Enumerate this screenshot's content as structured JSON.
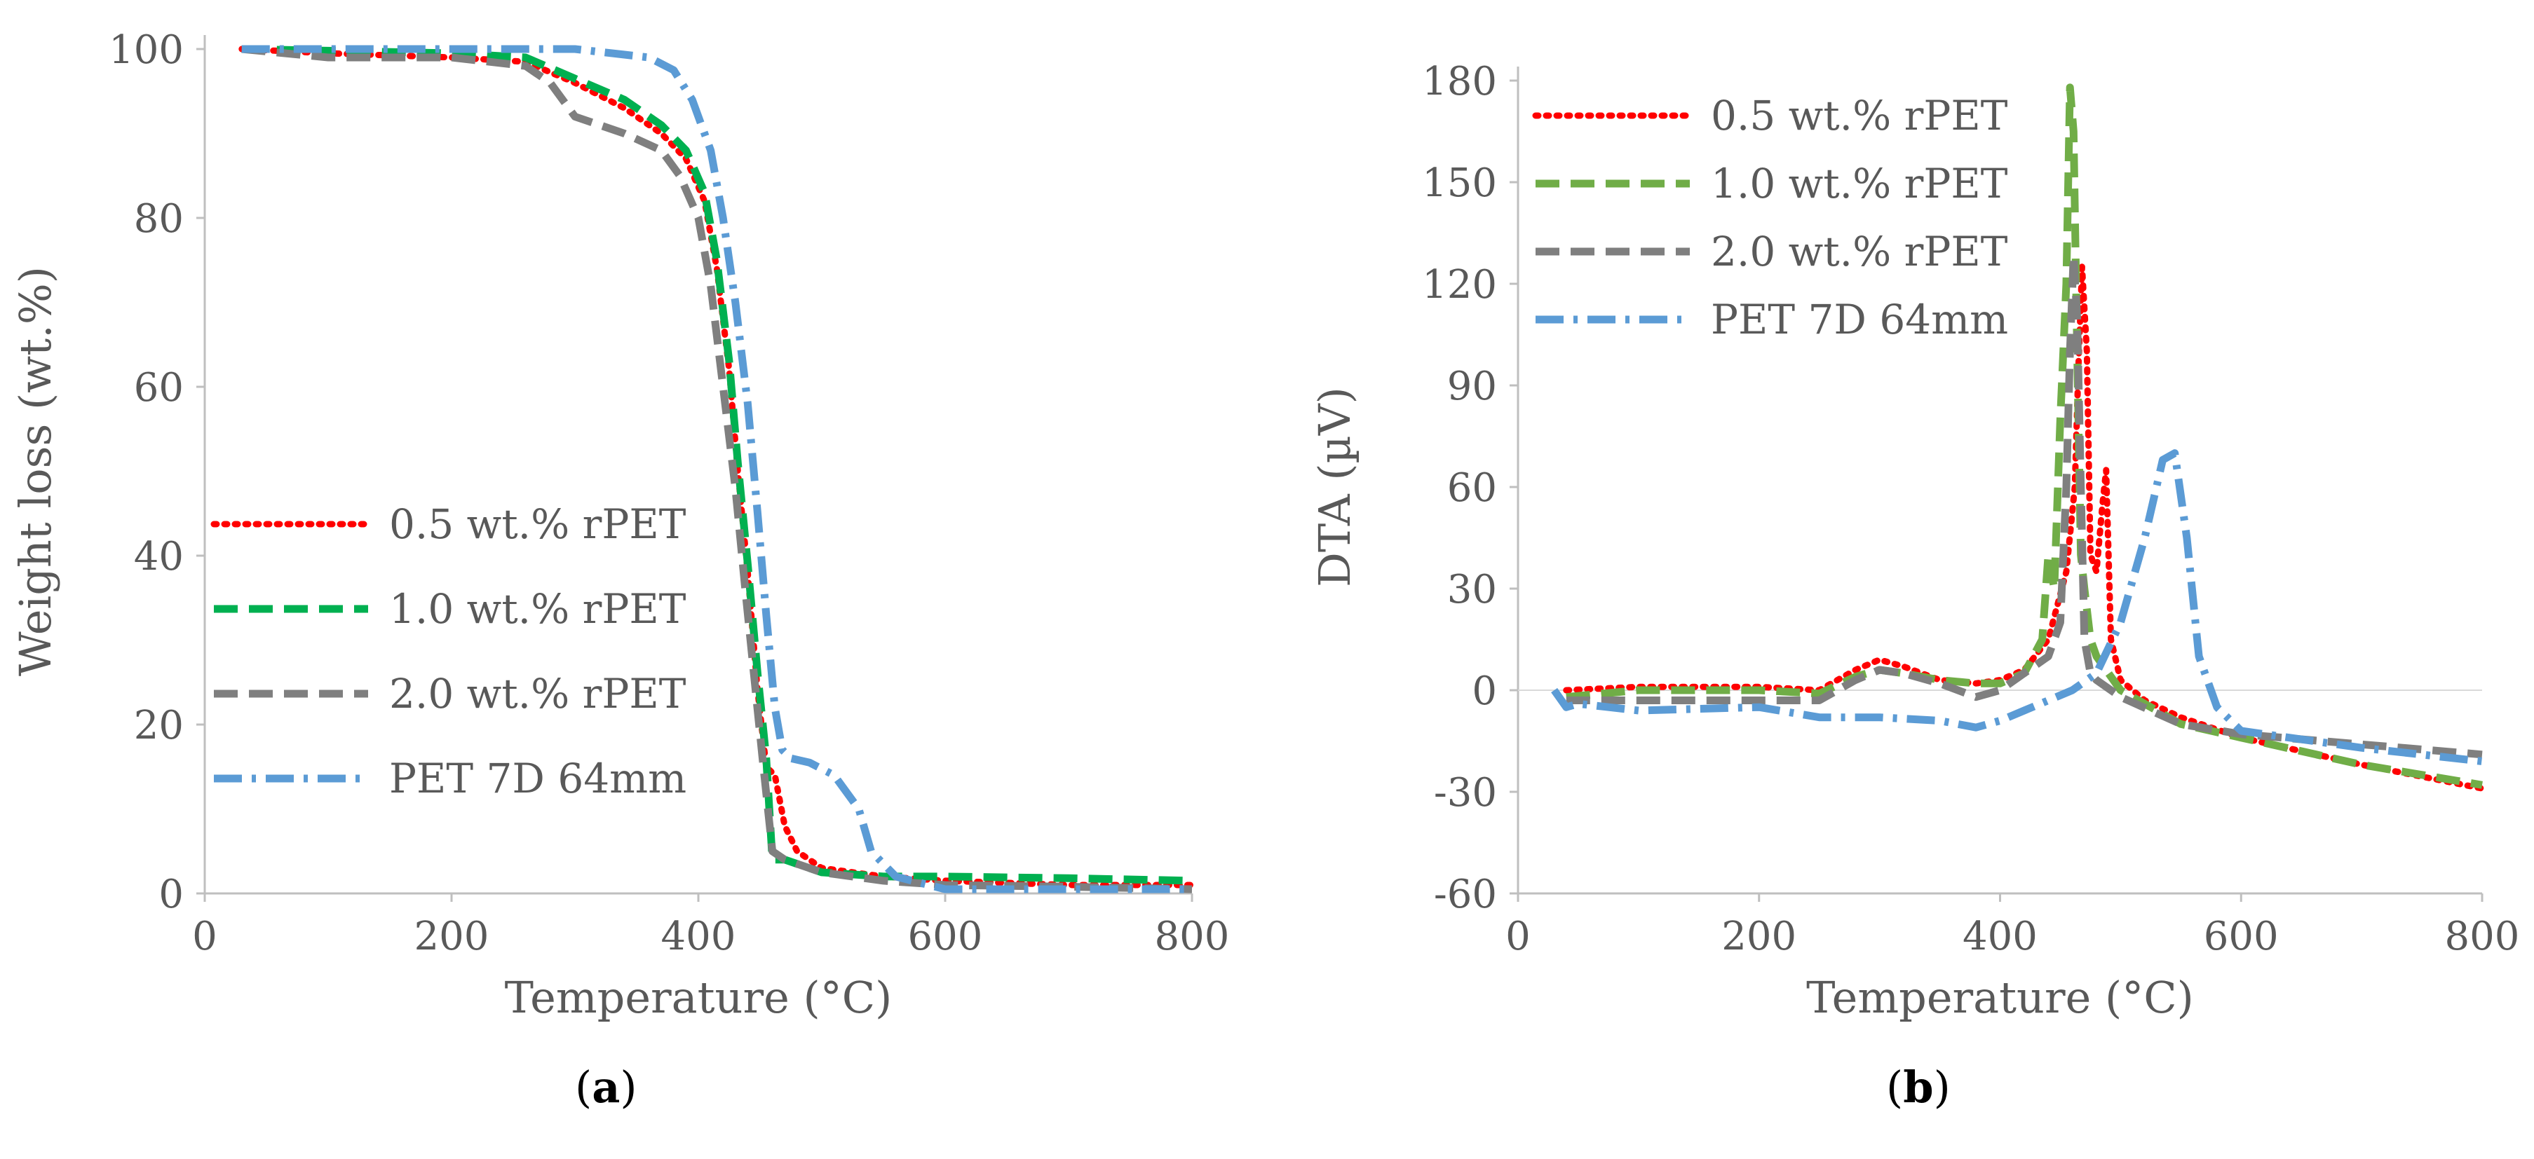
{
  "chart_data": [
    {
      "type": "line",
      "panel_label": "a",
      "xlabel": "Temperature (°C)",
      "ylabel": "Weight loss (wt.%)",
      "xlim": [
        0,
        800
      ],
      "ylim": [
        0,
        100
      ],
      "xticks": [
        0,
        200,
        400,
        600,
        800
      ],
      "yticks": [
        0,
        20,
        40,
        60,
        80,
        100
      ],
      "legend_position": "middle-left",
      "series": [
        {
          "name": "0.5 wt.% rPET",
          "color": "#ff0000",
          "dash": "dotted",
          "x": [
            30,
            100,
            200,
            260,
            300,
            340,
            370,
            390,
            405,
            415,
            425,
            432,
            440,
            448,
            455,
            462,
            470,
            480,
            500,
            550,
            600,
            700,
            800
          ],
          "y": [
            100,
            99.5,
            99,
            98.5,
            96,
            93,
            90,
            87,
            82,
            74,
            62,
            50,
            38,
            24,
            15,
            14,
            8,
            5,
            3,
            2,
            1.5,
            1,
            1
          ]
        },
        {
          "name": "1.0 wt.% rPET",
          "color": "#00b050",
          "dash": "dashed",
          "x": [
            30,
            100,
            200,
            260,
            300,
            340,
            370,
            390,
            405,
            415,
            425,
            432,
            440,
            448,
            455,
            460,
            470,
            500,
            550,
            600,
            700,
            800
          ],
          "y": [
            100,
            99.8,
            99.5,
            99,
            96.5,
            94,
            91,
            88,
            83,
            75,
            63,
            51,
            39,
            26,
            16,
            4,
            4,
            2.5,
            2,
            2,
            1.8,
            1.5
          ]
        },
        {
          "name": "2.0 wt.% rPET",
          "color": "#7f7f7f",
          "dash": "dashed",
          "x": [
            30,
            100,
            200,
            260,
            280,
            300,
            340,
            370,
            385,
            400,
            410,
            420,
            430,
            438,
            445,
            452,
            460,
            470,
            500,
            550,
            600,
            700,
            800
          ],
          "y": [
            100,
            99,
            99,
            98,
            96,
            92,
            90,
            88,
            85,
            80,
            72,
            60,
            48,
            36,
            26,
            16,
            5,
            4,
            2.5,
            1.5,
            1,
            0.8,
            0.5
          ]
        },
        {
          "name": "PET 7D 64mm",
          "color": "#5b9bd5",
          "dash": "dash-dot",
          "x": [
            30,
            100,
            200,
            300,
            360,
            380,
            395,
            410,
            420,
            430,
            440,
            448,
            455,
            462,
            468,
            475,
            490,
            510,
            530,
            540,
            560,
            600,
            700,
            800
          ],
          "y": [
            100,
            100,
            100,
            100,
            99,
            97.5,
            94,
            88,
            80,
            70,
            58,
            45,
            33,
            22,
            17,
            16,
            15.5,
            14,
            10,
            5,
            2,
            0.5,
            0.5,
            0.5
          ]
        }
      ]
    },
    {
      "type": "line",
      "panel_label": "b",
      "xlabel": "Temperature (°C)",
      "ylabel": "DTA (µV)",
      "xlim": [
        0,
        800
      ],
      "ylim": [
        -60,
        180
      ],
      "xticks": [
        0,
        200,
        400,
        600,
        800
      ],
      "yticks": [
        -60,
        -30,
        0,
        30,
        60,
        90,
        120,
        150,
        180
      ],
      "legend_position": "top-left",
      "series": [
        {
          "name": "0.5 wt.% rPET",
          "color": "#ff0000",
          "dash": "dotted",
          "x": [
            40,
            100,
            200,
            250,
            280,
            300,
            320,
            350,
            380,
            400,
            420,
            440,
            455,
            462,
            465,
            468,
            472,
            475,
            480,
            485,
            488,
            492,
            500,
            520,
            550,
            600,
            700,
            800
          ],
          "y": [
            0,
            1,
            1,
            0,
            6,
            9,
            7,
            3,
            2,
            3,
            6,
            15,
            35,
            60,
            95,
            125,
            100,
            40,
            35,
            55,
            65,
            15,
            3,
            -3,
            -8,
            -14,
            -22,
            -29
          ]
        },
        {
          "name": "1.0 wt.% rPET",
          "color": "#70ad47",
          "dash": "dashed",
          "x": [
            40,
            100,
            200,
            250,
            280,
            300,
            320,
            350,
            380,
            400,
            420,
            435,
            440,
            445,
            450,
            455,
            458,
            461,
            464,
            467,
            470,
            475,
            480,
            500,
            550,
            600,
            700,
            800
          ],
          "y": [
            -2,
            0,
            0,
            -1,
            4,
            6,
            5,
            3,
            2,
            2,
            5,
            15,
            40,
            30,
            80,
            120,
            178,
            165,
            100,
            40,
            30,
            15,
            10,
            0,
            -10,
            -14,
            -22,
            -28
          ]
        },
        {
          "name": "2.0 wt.% rPET",
          "color": "#7f7f7f",
          "dash": "dashed",
          "x": [
            40,
            100,
            200,
            250,
            280,
            300,
            320,
            350,
            380,
            400,
            420,
            440,
            450,
            455,
            458,
            461,
            464,
            467,
            470,
            475,
            480,
            500,
            550,
            600,
            700,
            800
          ],
          "y": [
            -3,
            -3,
            -3,
            -3,
            3,
            6,
            5,
            2,
            -2,
            0,
            5,
            10,
            20,
            60,
            100,
            128,
            110,
            60,
            15,
            5,
            3,
            -2,
            -10,
            -13,
            -16,
            -19
          ]
        },
        {
          "name": "PET 7D 64mm",
          "color": "#5b9bd5",
          "dash": "dash-dot",
          "x": [
            30,
            40,
            50,
            100,
            200,
            250,
            300,
            350,
            380,
            400,
            420,
            440,
            460,
            480,
            500,
            520,
            535,
            545,
            555,
            565,
            580,
            600,
            700,
            800
          ],
          "y": [
            0,
            -5,
            -4,
            -6,
            -5,
            -8,
            -8,
            -9,
            -11,
            -9,
            -6,
            -3,
            0,
            5,
            20,
            45,
            68,
            70,
            45,
            10,
            -5,
            -12,
            -17,
            -21
          ]
        }
      ]
    }
  ],
  "captions": [
    "a",
    "b"
  ],
  "legend_line_labels": {
    "a": [
      "0.5 wt.% rPET",
      "1.0 wt.% rPET",
      "2.0 wt.% rPET",
      "PET 7D 64mm"
    ],
    "b": [
      "0.5 wt.% rPET",
      "1.0 wt.% rPET",
      "2.0 wt.% rPET",
      "PET 7D 64mm"
    ]
  }
}
